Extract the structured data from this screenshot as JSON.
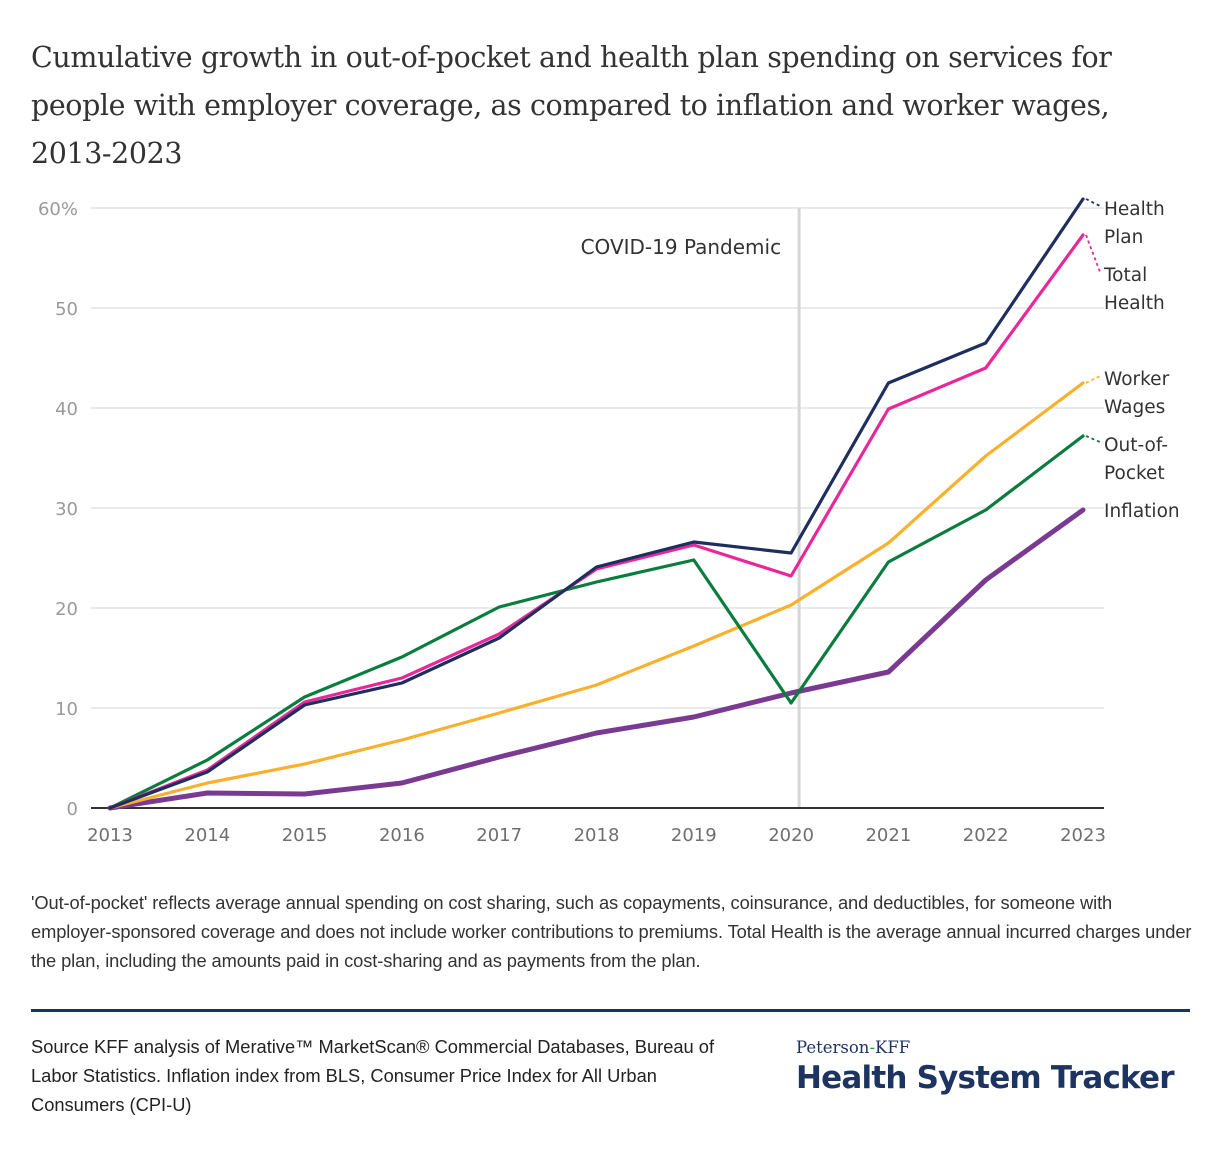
{
  "title": "Cumulative growth in out-of-pocket and health plan spending on services for people with employer coverage, as compared to inflation and worker wages, 2013-2023",
  "chart_data": {
    "type": "line",
    "title": "Cumulative growth in out-of-pocket and health plan spending on services for people with employer coverage, as compared to inflation and worker wages, 2013-2023",
    "xlabel": "",
    "ylabel": "",
    "x": [
      "2013",
      "2014",
      "2015",
      "2016",
      "2017",
      "2018",
      "2019",
      "2020",
      "2021",
      "2022",
      "2023"
    ],
    "ylim": [
      0,
      60
    ],
    "yticks": [
      0,
      10,
      20,
      30,
      40,
      50,
      60
    ],
    "ytick_labels": [
      "0",
      "10",
      "20",
      "30",
      "40",
      "50",
      "60%"
    ],
    "grid": true,
    "legend": "direct labels at right end of each line",
    "series": [
      {
        "name": "Health Plan",
        "label_lines": [
          "Health",
          "Plan"
        ],
        "color": "#1e2f5f",
        "values": [
          0,
          3.6,
          10.3,
          12.5,
          17.0,
          24.1,
          26.6,
          25.5,
          42.5,
          46.5,
          60.9
        ]
      },
      {
        "name": "Total Health",
        "label_lines": [
          "Total",
          "Health"
        ],
        "color": "#e8289a",
        "values": [
          0,
          3.8,
          10.6,
          13.0,
          17.4,
          23.9,
          26.3,
          23.2,
          39.9,
          44.0,
          57.3
        ]
      },
      {
        "name": "Worker Wages",
        "label_lines": [
          "Worker",
          "Wages"
        ],
        "color": "#fbb02d",
        "values": [
          0,
          2.5,
          4.4,
          6.8,
          9.5,
          12.3,
          16.2,
          20.3,
          26.5,
          35.2,
          42.5
        ]
      },
      {
        "name": "Out-of-Pocket",
        "label_lines": [
          "Out-of-",
          "Pocket"
        ],
        "color": "#0a7d3e",
        "values": [
          0,
          4.8,
          11.1,
          15.1,
          20.1,
          22.6,
          24.8,
          10.5,
          24.6,
          29.8,
          37.2
        ]
      },
      {
        "name": "Inflation",
        "label_lines": [
          "Inflation"
        ],
        "color": "#7b3a92",
        "values": [
          0,
          1.5,
          1.4,
          2.5,
          5.1,
          7.5,
          9.1,
          11.5,
          13.6,
          22.8,
          29.8
        ]
      }
    ],
    "annotations": [
      {
        "text": "COVID-19 Pandemic",
        "x": "2020"
      }
    ]
  },
  "note": "'Out-of-pocket' reflects average annual spending on cost sharing, such as copayments, coinsurance, and deductibles, for someone with employer-sponsored coverage and does not include worker contributions to premiums. Total Health is the average annual incurred charges under the plan, including the amounts paid in cost-sharing and as payments from the plan.",
  "source": "Source KFF analysis of Merative™ MarketScan® Commercial Databases, Bureau of Labor Statistics. Inflation index from BLS, Consumer Price Index for All Urban Consumers (CPI-U)",
  "logo": {
    "top_left": "Peterson",
    "top_hyphen": "-",
    "top_right": "KFF",
    "main": "Health System Tracker"
  }
}
